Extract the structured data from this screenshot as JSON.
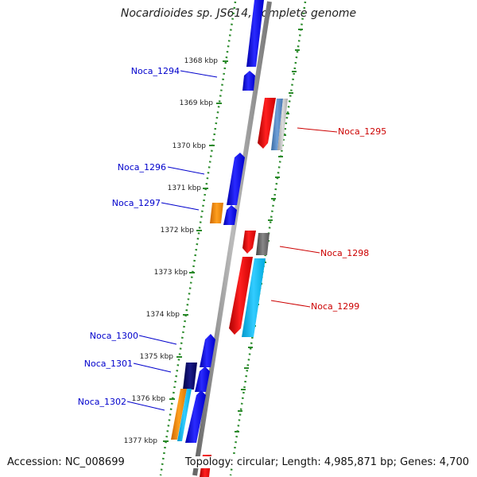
{
  "title": "Nocardioides sp. JS614, complete genome",
  "accession": "Accession: NC_008699",
  "topology": "Topology: circular; Length: 4,985,871 bp; Genes: 4,700",
  "scale_labels": [
    "1368 kbp",
    "1369 kbp",
    "1370 kbp",
    "1371 kbp",
    "1372 kbp",
    "1373 kbp",
    "1374 kbp",
    "1375 kbp",
    "1376 kbp",
    "1377 kbp"
  ],
  "gene_labels": [
    {
      "name": "Noca_1294",
      "color": "#0000cc"
    },
    {
      "name": "Noca_1295",
      "color": "#cc0000"
    },
    {
      "name": "Noca_1296",
      "color": "#0000cc"
    },
    {
      "name": "Noca_1297",
      "color": "#0000cc"
    },
    {
      "name": "Noca_1298",
      "color": "#cc0000"
    },
    {
      "name": "Noca_1299",
      "color": "#cc0000"
    },
    {
      "name": "Noca_1300",
      "color": "#0000cc"
    },
    {
      "name": "Noca_1301",
      "color": "#0000cc"
    },
    {
      "name": "Noca_1302",
      "color": "#0000cc"
    }
  ],
  "colors": {
    "forward_strand": "#0000ee",
    "reverse_strand": "#ee0000",
    "backbone": "#8c8c8c",
    "dotted_ring": "#2a8a2a",
    "orange": "#ff8800",
    "cyan": "#00bbee",
    "navy": "#000066",
    "steel_blue": "#4d7fb8",
    "grey": "#666666"
  }
}
